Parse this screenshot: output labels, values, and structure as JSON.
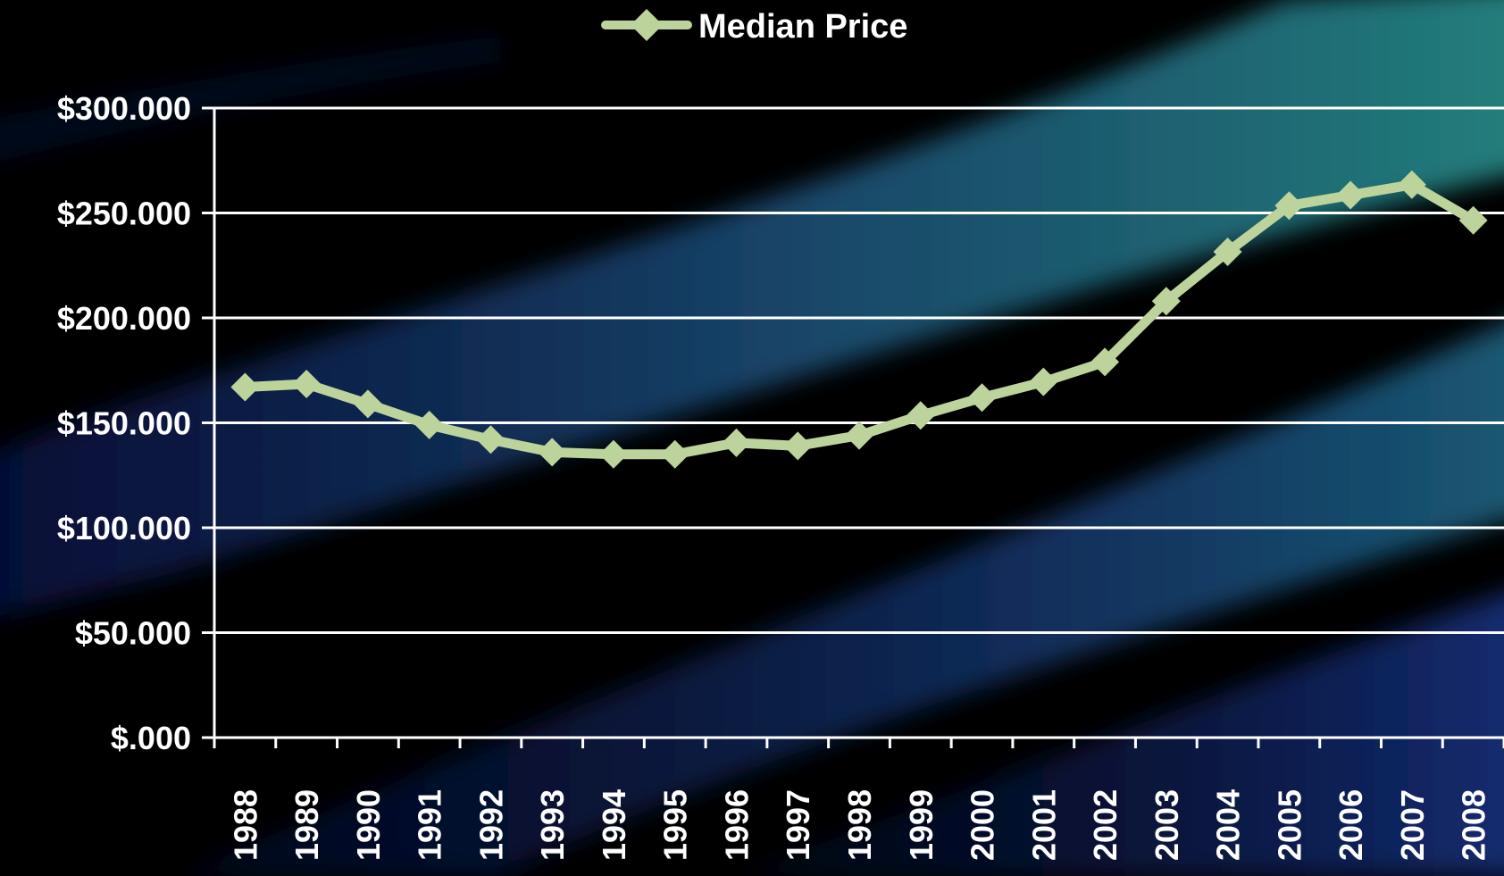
{
  "colors": {
    "background": "#000000",
    "series": "#bcd39c",
    "grid": "#ffffff",
    "axis": "#ffffff",
    "label": "#ffffff"
  },
  "legend": {
    "label": "Median Price",
    "position": "top-center",
    "marker": "diamond"
  },
  "chart_data": {
    "type": "line",
    "categories": [
      "1988",
      "1989",
      "1990",
      "1991",
      "1992",
      "1993",
      "1994",
      "1995",
      "1996",
      "1997",
      "1998",
      "1999",
      "2000",
      "2001",
      "2002",
      "2003",
      "2004",
      "2005",
      "2006",
      "2007",
      "2008"
    ],
    "series": [
      {
        "name": "Median Price",
        "values": [
          167000,
          168500,
          159000,
          149000,
          142000,
          136000,
          135000,
          135000,
          140500,
          139000,
          144000,
          153500,
          162000,
          169500,
          179000,
          208000,
          231500,
          253500,
          258500,
          263500,
          246500
        ]
      }
    ],
    "ylim": [
      0,
      300000
    ],
    "yticks": [
      0,
      50000,
      100000,
      150000,
      200000,
      250000,
      300000
    ],
    "ytick_labels": [
      "$.000",
      "$50.000",
      "$100.000",
      "$150.000",
      "$200.000",
      "$250.000",
      "$300.000"
    ],
    "xlabel": "",
    "ylabel": "",
    "title": "",
    "grid": true,
    "legend_position": "top"
  }
}
